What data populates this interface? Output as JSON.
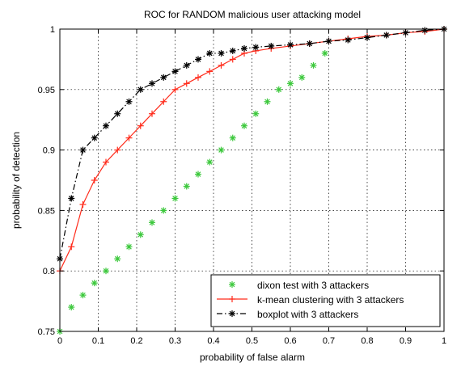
{
  "chart_data": {
    "type": "line",
    "title": "ROC for RANDOM malicious user attacking model",
    "xlabel": "probability of false alarm",
    "ylabel": "probability of detection",
    "xlim": [
      0,
      1
    ],
    "ylim": [
      0.75,
      1
    ],
    "x_ticks": [
      0,
      0.1,
      0.2,
      0.3,
      0.4,
      0.5,
      0.6,
      0.7,
      0.8,
      0.9,
      1
    ],
    "x_tick_labels": [
      "0",
      "0.1",
      "0.2",
      "0.3",
      "0.4",
      "0.5",
      "0.6",
      "0.7",
      "0.8",
      "0.9",
      "1"
    ],
    "y_ticks": [
      0.75,
      0.8,
      0.85,
      0.9,
      0.95,
      1
    ],
    "y_tick_labels": [
      "0.75",
      "0.8",
      "0.85",
      "0.9",
      "0.95",
      "1"
    ],
    "grid": true,
    "legend_position": "bottom-right",
    "series": [
      {
        "name": "dixon test with 3 attackers",
        "color": "#3cc83c",
        "line_style": "none",
        "marker": "*",
        "x": [
          0,
          0.03,
          0.06,
          0.09,
          0.12,
          0.15,
          0.18,
          0.21,
          0.24,
          0.27,
          0.3,
          0.33,
          0.36,
          0.39,
          0.42,
          0.45,
          0.48,
          0.51,
          0.54,
          0.57,
          0.6,
          0.63,
          0.66,
          0.69
        ],
        "y": [
          0.75,
          0.77,
          0.78,
          0.79,
          0.8,
          0.81,
          0.82,
          0.83,
          0.84,
          0.85,
          0.86,
          0.87,
          0.88,
          0.89,
          0.9,
          0.91,
          0.92,
          0.93,
          0.94,
          0.95,
          0.955,
          0.96,
          0.97,
          0.98
        ]
      },
      {
        "name": "k-mean clustering with 3 attackers",
        "color": "#ff2a1a",
        "line_style": "solid",
        "marker": "+",
        "x": [
          0,
          0.03,
          0.06,
          0.09,
          0.12,
          0.15,
          0.18,
          0.21,
          0.24,
          0.27,
          0.3,
          0.33,
          0.36,
          0.39,
          0.42,
          0.45,
          0.48,
          0.51,
          0.55,
          0.6,
          0.65,
          0.7,
          0.75,
          0.8,
          0.85,
          0.9,
          0.95,
          1.0
        ],
        "y": [
          0.8,
          0.82,
          0.855,
          0.875,
          0.89,
          0.9,
          0.91,
          0.92,
          0.93,
          0.94,
          0.95,
          0.955,
          0.96,
          0.965,
          0.97,
          0.975,
          0.98,
          0.982,
          0.984,
          0.986,
          0.988,
          0.99,
          0.992,
          0.994,
          0.995,
          0.997,
          0.998,
          1.0
        ]
      },
      {
        "name": "boxplot with 3 attackers",
        "color": "#000000",
        "line_style": "dashdot",
        "marker": "*",
        "x": [
          0,
          0.03,
          0.06,
          0.09,
          0.12,
          0.15,
          0.18,
          0.21,
          0.24,
          0.27,
          0.3,
          0.33,
          0.36,
          0.39,
          0.42,
          0.45,
          0.48,
          0.51,
          0.55,
          0.6,
          0.65,
          0.7,
          0.75,
          0.8,
          0.85,
          0.9,
          0.95,
          1.0
        ],
        "y": [
          0.81,
          0.86,
          0.9,
          0.91,
          0.92,
          0.93,
          0.94,
          0.95,
          0.955,
          0.96,
          0.965,
          0.97,
          0.975,
          0.98,
          0.98,
          0.982,
          0.984,
          0.985,
          0.986,
          0.987,
          0.988,
          0.99,
          0.991,
          0.993,
          0.995,
          0.997,
          0.999,
          1.0
        ]
      }
    ]
  }
}
